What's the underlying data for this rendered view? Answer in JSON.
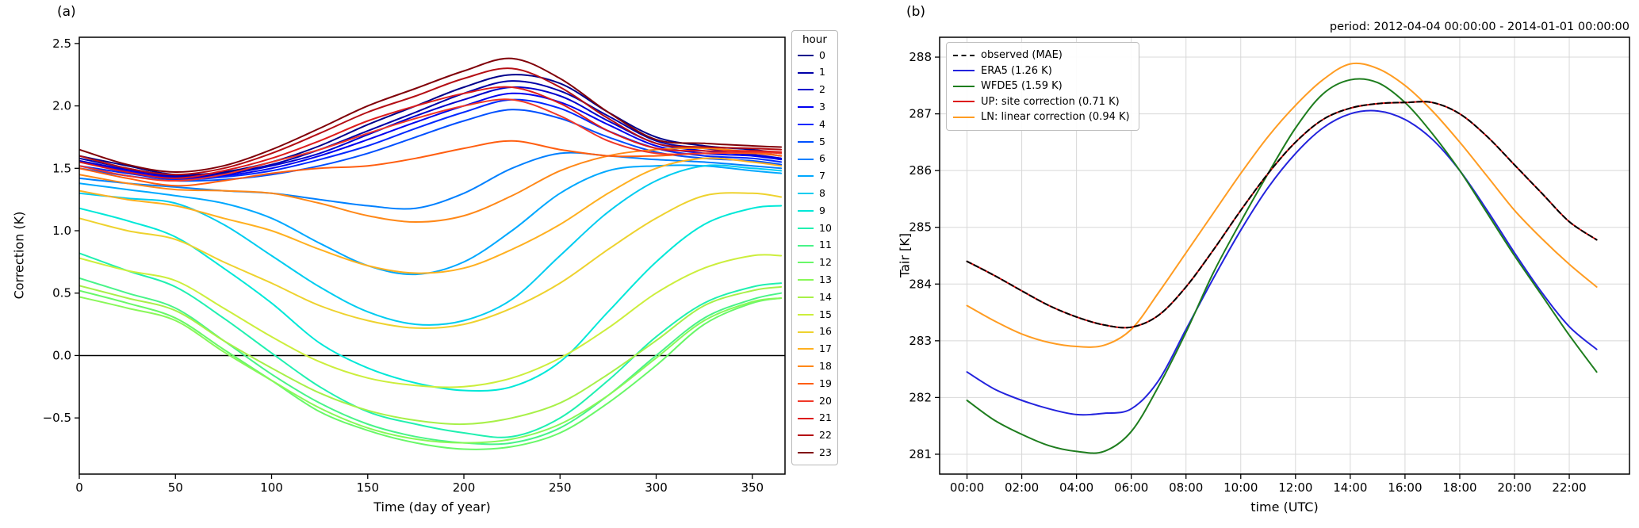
{
  "figure": {
    "background": "#ffffff"
  },
  "colors": {
    "spine": "#000000",
    "grid": "#d8d8d8",
    "zero_line": "#000000",
    "tick_text": "#000000"
  },
  "chart_data": [
    {
      "id": "a",
      "type": "line",
      "panel_label": "(a)",
      "title": "",
      "xlabel": "Time (day of year)",
      "ylabel": "Correction (K)",
      "legend_title": "hour",
      "legend_position": "right",
      "grid": false,
      "zero_line": 0,
      "xlim": [
        0,
        367
      ],
      "ylim": [
        -0.95,
        2.55
      ],
      "xticks": {
        "values": [
          0,
          50,
          100,
          150,
          200,
          250,
          300,
          350
        ],
        "labels": [
          "0",
          "50",
          "100",
          "150",
          "200",
          "250",
          "300",
          "350"
        ]
      },
      "yticks": {
        "values": [
          -0.5,
          0.0,
          0.5,
          1.0,
          1.5,
          2.0,
          2.5
        ],
        "labels": [
          "−0.5",
          "0.0",
          "0.5",
          "1.0",
          "1.5",
          "2.0",
          "2.5"
        ]
      },
      "x": [
        0,
        25,
        50,
        75,
        100,
        125,
        150,
        175,
        200,
        225,
        250,
        275,
        300,
        325,
        350,
        365
      ],
      "series": [
        {
          "name": "0",
          "color": "#00008b",
          "values": [
            1.6,
            1.52,
            1.45,
            1.47,
            1.55,
            1.68,
            1.85,
            2.0,
            2.15,
            2.25,
            2.18,
            1.95,
            1.75,
            1.68,
            1.65,
            1.62
          ]
        },
        {
          "name": "1",
          "color": "#0000a8",
          "values": [
            1.58,
            1.5,
            1.44,
            1.46,
            1.53,
            1.65,
            1.8,
            1.95,
            2.1,
            2.2,
            2.12,
            1.92,
            1.72,
            1.66,
            1.63,
            1.6
          ]
        },
        {
          "name": "2",
          "color": "#0000cd",
          "values": [
            1.56,
            1.49,
            1.43,
            1.45,
            1.52,
            1.62,
            1.77,
            1.92,
            2.05,
            2.15,
            2.08,
            1.88,
            1.7,
            1.64,
            1.61,
            1.58
          ]
        },
        {
          "name": "3",
          "color": "#0000f0",
          "values": [
            1.55,
            1.48,
            1.42,
            1.44,
            1.5,
            1.6,
            1.73,
            1.87,
            2.0,
            2.1,
            2.03,
            1.85,
            1.68,
            1.62,
            1.6,
            1.57
          ]
        },
        {
          "name": "4",
          "color": "#0028ff",
          "values": [
            1.52,
            1.46,
            1.41,
            1.43,
            1.48,
            1.57,
            1.68,
            1.82,
            1.95,
            2.05,
            1.98,
            1.8,
            1.66,
            1.6,
            1.58,
            1.55
          ]
        },
        {
          "name": "5",
          "color": "#0050ff",
          "values": [
            1.5,
            1.44,
            1.4,
            1.41,
            1.45,
            1.52,
            1.62,
            1.75,
            1.88,
            1.97,
            1.9,
            1.75,
            1.63,
            1.58,
            1.56,
            1.53
          ]
        },
        {
          "name": "6",
          "color": "#0080ff",
          "values": [
            1.42,
            1.38,
            1.35,
            1.32,
            1.3,
            1.25,
            1.2,
            1.18,
            1.3,
            1.5,
            1.62,
            1.6,
            1.57,
            1.55,
            1.52,
            1.5
          ]
        },
        {
          "name": "7",
          "color": "#00a8ff",
          "values": [
            1.38,
            1.33,
            1.28,
            1.22,
            1.1,
            0.9,
            0.72,
            0.65,
            0.75,
            1.0,
            1.3,
            1.48,
            1.52,
            1.52,
            1.48,
            1.46
          ]
        },
        {
          "name": "8",
          "color": "#00ccf0",
          "values": [
            1.3,
            1.26,
            1.22,
            1.05,
            0.8,
            0.55,
            0.35,
            0.25,
            0.28,
            0.45,
            0.8,
            1.15,
            1.4,
            1.52,
            1.5,
            1.48
          ]
        },
        {
          "name": "9",
          "color": "#00e8d8",
          "values": [
            1.18,
            1.08,
            0.95,
            0.7,
            0.42,
            0.1,
            -0.1,
            -0.22,
            -0.28,
            -0.25,
            -0.05,
            0.35,
            0.75,
            1.05,
            1.18,
            1.2
          ]
        },
        {
          "name": "10",
          "color": "#20f0b0",
          "values": [
            0.82,
            0.68,
            0.55,
            0.3,
            0.02,
            -0.25,
            -0.45,
            -0.55,
            -0.62,
            -0.65,
            -0.5,
            -0.2,
            0.15,
            0.42,
            0.55,
            0.58
          ]
        },
        {
          "name": "11",
          "color": "#48f488",
          "values": [
            0.62,
            0.5,
            0.38,
            0.12,
            -0.15,
            -0.38,
            -0.55,
            -0.65,
            -0.7,
            -0.7,
            -0.58,
            -0.32,
            0.0,
            0.3,
            0.45,
            0.5
          ]
        },
        {
          "name": "12",
          "color": "#68f868",
          "values": [
            0.52,
            0.42,
            0.3,
            0.05,
            -0.2,
            -0.45,
            -0.6,
            -0.7,
            -0.75,
            -0.73,
            -0.62,
            -0.38,
            -0.08,
            0.25,
            0.42,
            0.46
          ]
        },
        {
          "name": "13",
          "color": "#88f858",
          "values": [
            0.47,
            0.38,
            0.28,
            0.03,
            -0.2,
            -0.42,
            -0.58,
            -0.67,
            -0.7,
            -0.67,
            -0.55,
            -0.32,
            -0.02,
            0.28,
            0.43,
            0.46
          ]
        },
        {
          "name": "14",
          "color": "#a8f048",
          "values": [
            0.56,
            0.46,
            0.36,
            0.12,
            -0.1,
            -0.3,
            -0.44,
            -0.52,
            -0.55,
            -0.5,
            -0.38,
            -0.15,
            0.12,
            0.4,
            0.52,
            0.55
          ]
        },
        {
          "name": "15",
          "color": "#ccee3c",
          "values": [
            0.78,
            0.68,
            0.6,
            0.38,
            0.15,
            -0.05,
            -0.18,
            -0.24,
            -0.25,
            -0.18,
            -0.02,
            0.22,
            0.5,
            0.7,
            0.8,
            0.8
          ]
        },
        {
          "name": "16",
          "color": "#eed22e",
          "values": [
            1.1,
            1.0,
            0.93,
            0.75,
            0.58,
            0.4,
            0.28,
            0.22,
            0.25,
            0.38,
            0.58,
            0.85,
            1.1,
            1.28,
            1.3,
            1.27
          ]
        },
        {
          "name": "17",
          "color": "#ffb020",
          "values": [
            1.32,
            1.25,
            1.2,
            1.1,
            1.0,
            0.85,
            0.72,
            0.66,
            0.7,
            0.85,
            1.05,
            1.3,
            1.5,
            1.58,
            1.55,
            1.52
          ]
        },
        {
          "name": "18",
          "color": "#ff8818",
          "values": [
            1.45,
            1.38,
            1.33,
            1.32,
            1.3,
            1.22,
            1.12,
            1.07,
            1.12,
            1.28,
            1.48,
            1.6,
            1.65,
            1.66,
            1.63,
            1.6
          ]
        },
        {
          "name": "19",
          "color": "#ff5e10",
          "values": [
            1.5,
            1.42,
            1.36,
            1.4,
            1.46,
            1.5,
            1.52,
            1.58,
            1.66,
            1.72,
            1.65,
            1.6,
            1.6,
            1.62,
            1.62,
            1.6
          ]
        },
        {
          "name": "20",
          "color": "#f03828",
          "values": [
            1.52,
            1.44,
            1.4,
            1.45,
            1.55,
            1.65,
            1.78,
            1.9,
            2.0,
            2.05,
            1.92,
            1.72,
            1.62,
            1.62,
            1.63,
            1.62
          ]
        },
        {
          "name": "21",
          "color": "#dd1c1c",
          "values": [
            1.55,
            1.47,
            1.42,
            1.48,
            1.58,
            1.72,
            1.88,
            2.0,
            2.1,
            2.15,
            2.02,
            1.8,
            1.66,
            1.64,
            1.64,
            1.63
          ]
        },
        {
          "name": "22",
          "color": "#b40e14",
          "values": [
            1.6,
            1.5,
            1.45,
            1.5,
            1.62,
            1.78,
            1.95,
            2.08,
            2.22,
            2.3,
            2.15,
            1.9,
            1.7,
            1.67,
            1.66,
            1.65
          ]
        },
        {
          "name": "23",
          "color": "#800008",
          "values": [
            1.65,
            1.53,
            1.47,
            1.52,
            1.65,
            1.82,
            2.0,
            2.14,
            2.28,
            2.38,
            2.22,
            1.95,
            1.73,
            1.7,
            1.68,
            1.67
          ]
        }
      ]
    },
    {
      "id": "b",
      "type": "line",
      "panel_label": "(b)",
      "title": "period: 2012-04-04 00:00:00 - 2014-01-01 00:00:00",
      "xlabel": "time (UTC)",
      "ylabel": "Tair [K]",
      "legend_position": "upper left",
      "grid": true,
      "xlim": [
        -1,
        24.2
      ],
      "ylim": [
        280.65,
        288.35
      ],
      "xticks": {
        "values": [
          0,
          2,
          4,
          6,
          8,
          10,
          12,
          14,
          16,
          18,
          20,
          22
        ],
        "labels": [
          "00:00",
          "02:00",
          "04:00",
          "06:00",
          "08:00",
          "10:00",
          "12:00",
          "14:00",
          "16:00",
          "18:00",
          "20:00",
          "22:00"
        ]
      },
      "yticks": {
        "values": [
          281,
          282,
          283,
          284,
          285,
          286,
          287,
          288
        ],
        "labels": [
          "281",
          "282",
          "283",
          "284",
          "285",
          "286",
          "287",
          "288"
        ]
      },
      "x": [
        0,
        1,
        2,
        3,
        4,
        5,
        6,
        7,
        8,
        9,
        10,
        11,
        12,
        13,
        14,
        15,
        16,
        17,
        18,
        19,
        20,
        21,
        22,
        23
      ],
      "series": [
        {
          "name": "observed (MAE)",
          "color": "#000000",
          "dash": [
            6,
            4
          ],
          "zorder": 4,
          "values": [
            284.4,
            284.15,
            283.88,
            283.62,
            283.42,
            283.28,
            283.24,
            283.45,
            283.95,
            284.6,
            285.3,
            285.95,
            286.5,
            286.9,
            287.1,
            287.18,
            287.2,
            287.2,
            287.0,
            286.6,
            286.1,
            285.6,
            285.1,
            284.78
          ]
        },
        {
          "name": "ERA5 (1.26 K)",
          "color": "#2323dd",
          "zorder": 1,
          "values": [
            282.45,
            282.15,
            281.95,
            281.8,
            281.7,
            281.72,
            281.8,
            282.3,
            283.2,
            284.1,
            284.95,
            285.7,
            286.3,
            286.75,
            287.0,
            287.05,
            286.9,
            286.55,
            286.0,
            285.3,
            284.55,
            283.85,
            283.25,
            282.85
          ]
        },
        {
          "name": "WFDE5 (1.59 K)",
          "color": "#1e7d1e",
          "zorder": 1,
          "values": [
            281.95,
            281.6,
            281.35,
            281.15,
            281.05,
            281.05,
            281.4,
            282.2,
            283.15,
            284.2,
            285.1,
            285.95,
            286.75,
            287.35,
            287.6,
            287.55,
            287.2,
            286.65,
            286.0,
            285.25,
            284.5,
            283.8,
            283.1,
            282.45
          ]
        },
        {
          "name": "UP: site correction (0.71 K)",
          "color": "#dd1111",
          "zorder": 3,
          "values": [
            284.4,
            284.15,
            283.88,
            283.62,
            283.42,
            283.28,
            283.24,
            283.45,
            283.95,
            284.6,
            285.3,
            285.95,
            286.5,
            286.9,
            287.1,
            287.18,
            287.2,
            287.2,
            287.0,
            286.6,
            286.1,
            285.6,
            285.1,
            284.78
          ]
        },
        {
          "name": "LN: linear correction (0.94 K)",
          "color": "#ff9c22",
          "zorder": 2,
          "values": [
            283.62,
            283.35,
            283.12,
            282.97,
            282.9,
            282.92,
            283.2,
            283.85,
            284.55,
            285.25,
            285.95,
            286.6,
            287.15,
            287.6,
            287.88,
            287.8,
            287.5,
            287.05,
            286.5,
            285.9,
            285.3,
            284.8,
            284.35,
            283.95
          ]
        }
      ]
    }
  ]
}
